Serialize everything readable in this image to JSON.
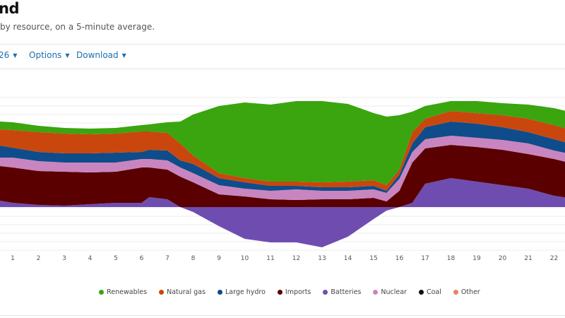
{
  "header": {
    "title": "nd",
    "subtitle": "by resource, on a 5-minute average."
  },
  "toolbar": {
    "date_label": "26",
    "options_label": "Options",
    "download_label": "Download"
  },
  "chart_data": {
    "type": "area",
    "stacked": true,
    "title": "",
    "xlabel": "",
    "ylabel": "",
    "xlim": [
      0.5,
      22.9
    ],
    "ylim": [
      -12,
      31
    ],
    "grid": true,
    "legend_position": "bottom",
    "x_ticks": [
      "1",
      "2",
      "3",
      "4",
      "5",
      "6",
      "7",
      "8",
      "9",
      "10",
      "11",
      "12",
      "13",
      "14",
      "15",
      "16",
      "17",
      "18",
      "19",
      "20",
      "21",
      "22"
    ],
    "x": [
      0.5,
      1,
      2,
      3,
      4,
      5,
      6,
      6.3,
      7,
      7.5,
      8,
      9,
      10,
      11,
      12,
      13,
      14,
      15,
      15.5,
      16,
      16.5,
      17,
      18,
      19,
      20,
      21,
      22,
      22.9
    ],
    "series": [
      {
        "name": "Batteries",
        "color": "#6f4db0",
        "values": [
          1.8,
          1.2,
          0.6,
          0.4,
          0.8,
          1.2,
          1.2,
          2.8,
          2.2,
          0,
          -1.4,
          -5.4,
          -9.0,
          -10.0,
          -10.0,
          -11.4,
          -8.4,
          -3.4,
          -1.0,
          0,
          1.2,
          6.6,
          8.2,
          7.2,
          6.2,
          5.2,
          3.2,
          2.2
        ]
      },
      {
        "name": "Imports",
        "color": "#5a0000",
        "values": [
          9.8,
          10.0,
          9.6,
          9.6,
          9.0,
          8.8,
          10.0,
          8.4,
          8.4,
          8.6,
          7.0,
          3.6,
          3.0,
          2.2,
          2.0,
          2.2,
          2.2,
          2.6,
          1.6,
          4.6,
          11.4,
          10.0,
          9.4,
          9.8,
          10.0,
          9.8,
          10.4,
          9.8
        ]
      },
      {
        "name": "Nuclear",
        "color": "#c985c0",
        "values": [
          2.4,
          2.8,
          2.8,
          2.6,
          2.8,
          2.6,
          2.4,
          2.4,
          2.6,
          2.6,
          2.6,
          2.6,
          2.2,
          2.4,
          3.0,
          2.4,
          2.4,
          2.4,
          2.4,
          3.4,
          3.0,
          2.6,
          2.6,
          2.6,
          2.8,
          3.0,
          2.4,
          2.6
        ]
      },
      {
        "name": "Large hydro",
        "color": "#0f4c8a",
        "values": [
          3.4,
          2.8,
          2.6,
          2.6,
          2.6,
          2.8,
          2.0,
          2.6,
          2.8,
          2.0,
          2.6,
          2.0,
          1.8,
          1.4,
          1.0,
          1.0,
          1.0,
          1.0,
          0.6,
          1.2,
          2.4,
          3.4,
          4.0,
          4.0,
          3.6,
          3.2,
          3.2,
          2.8
        ]
      },
      {
        "name": "Natural gas",
        "color": "#c9470d",
        "values": [
          4.6,
          5.0,
          5.6,
          5.6,
          5.4,
          5.4,
          5.8,
          5.2,
          5.0,
          4.8,
          2.4,
          1.4,
          1.2,
          1.2,
          1.2,
          1.4,
          1.6,
          1.6,
          1.6,
          1.4,
          3.2,
          2.4,
          3.0,
          3.0,
          3.4,
          3.8,
          4.0,
          4.0
        ]
      },
      {
        "name": "Renewables",
        "color": "#3aa50f",
        "values": [
          2.2,
          2.2,
          1.8,
          1.6,
          1.6,
          1.6,
          1.8,
          2.0,
          3.0,
          6.2,
          11.6,
          19.0,
          21.4,
          21.8,
          22.8,
          23.0,
          22.0,
          19.0,
          19.4,
          15.4,
          5.8,
          3.6,
          2.8,
          3.4,
          3.4,
          4.0,
          4.8,
          5.0
        ]
      }
    ],
    "legend": [
      {
        "name": "Renewables",
        "color": "#3aa50f"
      },
      {
        "name": "Natural gas",
        "color": "#c9470d"
      },
      {
        "name": "Large hydro",
        "color": "#0f4c8a"
      },
      {
        "name": "Imports",
        "color": "#5a0000"
      },
      {
        "name": "Batteries",
        "color": "#6f4db0"
      },
      {
        "name": "Nuclear",
        "color": "#c985c0"
      },
      {
        "name": "Coal",
        "color": "#111111"
      },
      {
        "name": "Other",
        "color": "#e8826a"
      }
    ]
  }
}
